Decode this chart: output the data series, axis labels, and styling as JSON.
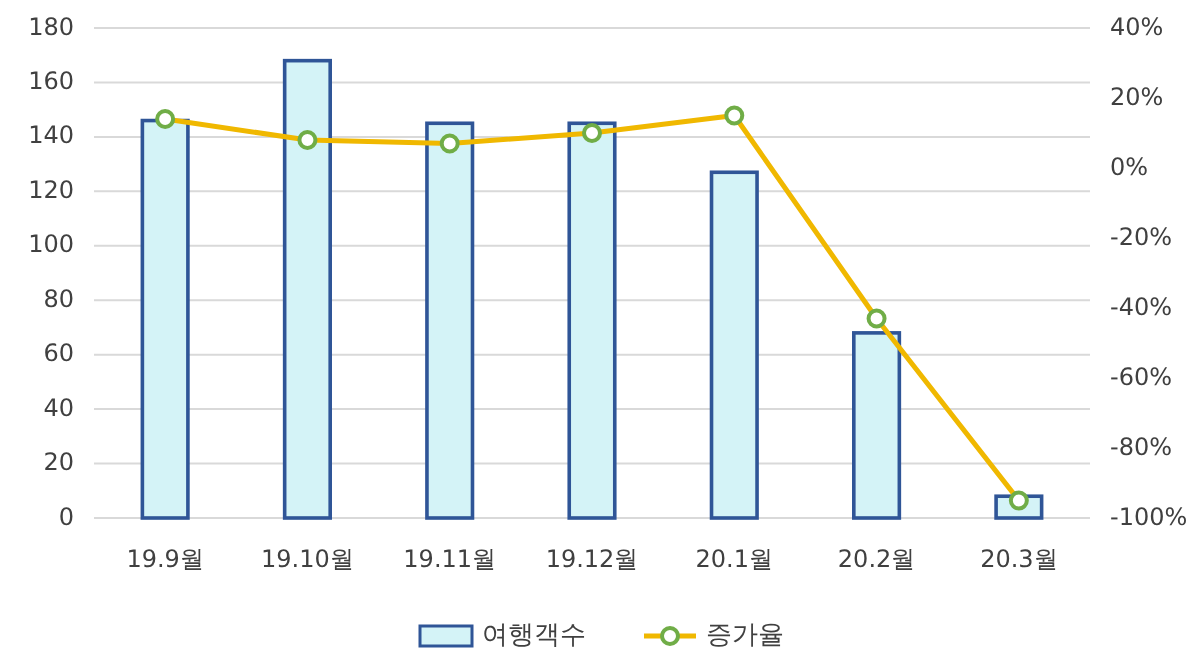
{
  "chart_data": {
    "type": "bar",
    "categories": [
      "19.9월",
      "19.10월",
      "19.11월",
      "19.12월",
      "20.1월",
      "20.2월",
      "20.3월"
    ],
    "series": [
      {
        "name": "여행객수",
        "color": "#d4f3f7",
        "values": [
          146,
          168,
          145,
          145,
          127,
          68,
          8
        ]
      },
      {
        "name": "증가율",
        "type": "line",
        "axis": "y2",
        "color": "#f0b800",
        "values": [
          14,
          8,
          7,
          10,
          15,
          -43,
          -95
        ]
      }
    ],
    "ylim": [
      0,
      180
    ],
    "yticks": [
      0,
      20,
      40,
      60,
      80,
      100,
      120,
      140,
      160,
      180
    ],
    "y2lim": [
      -100,
      40
    ],
    "y2ticks": [
      {
        "value": -100,
        "label": "-100%"
      },
      {
        "value": -80,
        "label": "-80%"
      },
      {
        "value": -60,
        "label": "-60%"
      },
      {
        "value": -40,
        "label": "-40%"
      },
      {
        "value": -20,
        "label": "-20%"
      },
      {
        "value": 0,
        "label": "0%"
      },
      {
        "value": 20,
        "label": "20%"
      },
      {
        "value": 40,
        "label": "40%"
      }
    ],
    "grid": "y",
    "legend": "bottom",
    "marker": "circle"
  }
}
